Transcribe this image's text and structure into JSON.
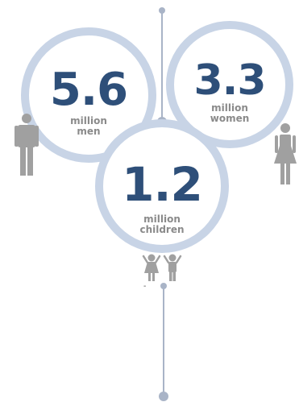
{
  "stats": [
    {
      "value": "5.6",
      "line1": "million",
      "line2": "men",
      "figure_icon": "man-icon"
    },
    {
      "value": "3.3",
      "line1": "million",
      "line2": "women",
      "figure_icon": "woman-icon"
    },
    {
      "value": "1.2",
      "line1": "million",
      "line2": "children",
      "figure_icon": "children-icon"
    }
  ],
  "dash_text": "-",
  "colors": {
    "ring": "#c8d4e6",
    "number": "#2e4f79",
    "label": "#8a8a8a",
    "line": "#a9b4c7",
    "figure": "#a0a0a0"
  }
}
